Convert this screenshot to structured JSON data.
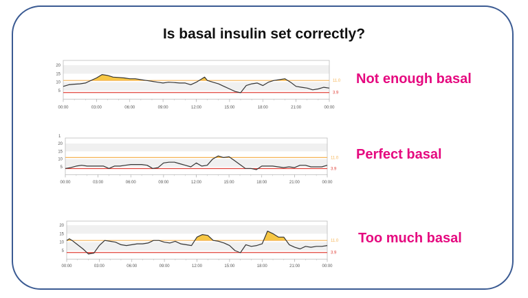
{
  "title": "Is basal insulin set correctly?",
  "colors": {
    "frame": "#3a5a92",
    "label": "#e5097f",
    "high_line": "#f5b456",
    "low_line": "#e0423a",
    "high_fill": "#f7c744",
    "low_fill": "#f08080",
    "trace": "#333333"
  },
  "chart_data": [
    {
      "type": "line",
      "label": "Not enough basal",
      "xticks": [
        "00:00",
        "03:00",
        "06:00",
        "09:00",
        "12:00",
        "15:00",
        "18:00",
        "21:00",
        "00:00"
      ],
      "yticks": [
        5,
        10,
        15,
        20
      ],
      "ylim": [
        0,
        23
      ],
      "thresholds": [
        {
          "value": 11.0,
          "label": "11.0"
        },
        {
          "value": 3.9,
          "label": "3.9"
        }
      ],
      "x": [
        "00:00",
        "00:30",
        "01:00",
        "01:30",
        "02:00",
        "02:30",
        "03:00",
        "03:30",
        "04:00",
        "04:30",
        "05:00",
        "05:30",
        "06:00",
        "06:30",
        "07:00",
        "07:30",
        "08:00",
        "08:30",
        "09:00",
        "09:30",
        "10:00",
        "10:30",
        "11:00",
        "11:30",
        "12:00",
        "12:30",
        "12:45",
        "13:00",
        "13:30",
        "14:00",
        "14:30",
        "15:00",
        "15:30",
        "16:00",
        "16:30",
        "17:00",
        "17:30",
        "18:00",
        "18:30",
        "19:00",
        "19:30",
        "20:00",
        "20:30",
        "21:00",
        "21:30",
        "22:00",
        "22:30",
        "23:00",
        "23:30",
        "24:00"
      ],
      "y": [
        7.5,
        8.5,
        8.8,
        9,
        9.5,
        11,
        12.5,
        14.5,
        14,
        13,
        12.8,
        12.5,
        12,
        12,
        11.5,
        11,
        10.5,
        10,
        9.5,
        10,
        9.8,
        9.5,
        9.5,
        8.5,
        10,
        12,
        13,
        11,
        10,
        9,
        7.5,
        6,
        4.5,
        3.8,
        8,
        9,
        9.5,
        8,
        10,
        11,
        11.5,
        12,
        10,
        7.5,
        7,
        6.5,
        5.5,
        6,
        7,
        6.5
      ]
    },
    {
      "type": "line",
      "label": "Perfect basal",
      "corner_mark": "1",
      "xticks": [
        "00:00",
        "03:00",
        "06:00",
        "09:00",
        "12:00",
        "15:00",
        "18:00",
        "21:00",
        "00:00"
      ],
      "yticks": [
        5,
        10,
        15,
        20
      ],
      "ylim": [
        0,
        23
      ],
      "thresholds": [
        {
          "value": 11.0,
          "label": "11.0"
        },
        {
          "value": 3.9,
          "label": "3.9"
        }
      ],
      "x": [
        "00:00",
        "00:30",
        "01:00",
        "01:30",
        "02:00",
        "02:30",
        "03:00",
        "03:30",
        "04:00",
        "04:30",
        "05:00",
        "05:30",
        "06:00",
        "06:30",
        "07:00",
        "07:30",
        "08:00",
        "08:30",
        "09:00",
        "09:30",
        "10:00",
        "10:30",
        "11:00",
        "11:30",
        "12:00",
        "12:30",
        "13:00",
        "13:30",
        "14:00",
        "14:30",
        "15:00",
        "15:30",
        "16:00",
        "16:30",
        "17:00",
        "17:30",
        "18:00",
        "18:30",
        "19:00",
        "19:30",
        "20:00",
        "20:30",
        "21:00",
        "21:30",
        "22:00",
        "22:30",
        "23:00",
        "23:30",
        "24:00"
      ],
      "y": [
        4,
        4.5,
        5.5,
        6,
        5.5,
        5.5,
        5.5,
        5.5,
        4,
        5.5,
        5.5,
        6,
        6.5,
        6.5,
        6.5,
        6,
        4,
        4.5,
        7.5,
        8,
        8,
        7,
        6,
        5,
        7.5,
        5.5,
        6,
        10,
        12,
        11,
        11.5,
        9,
        6.5,
        4,
        4,
        3.2,
        5.5,
        5.5,
        5.5,
        5,
        4.5,
        5,
        4.5,
        6,
        6,
        5,
        5,
        5,
        6
      ]
    },
    {
      "type": "line",
      "label": "Too much basal",
      "xticks": [
        "00:00",
        "03:00",
        "06:00",
        "09:00",
        "12:00",
        "15:00",
        "18:00",
        "21:00",
        "00:00"
      ],
      "yticks": [
        5,
        10,
        15,
        20
      ],
      "ylim": [
        0,
        23
      ],
      "thresholds": [
        {
          "value": 11.0,
          "label": "11.0"
        },
        {
          "value": 3.9,
          "label": "3.9"
        }
      ],
      "x": [
        "00:00",
        "00:15",
        "00:30",
        "01:00",
        "01:30",
        "02:00",
        "02:30",
        "03:00",
        "03:30",
        "04:00",
        "04:30",
        "05:00",
        "05:30",
        "06:00",
        "06:30",
        "07:00",
        "07:30",
        "08:00",
        "08:30",
        "09:00",
        "09:30",
        "10:00",
        "10:30",
        "11:00",
        "11:30",
        "12:00",
        "12:30",
        "13:00",
        "13:30",
        "14:00",
        "14:30",
        "15:00",
        "15:30",
        "16:00",
        "16:30",
        "17:00",
        "17:30",
        "18:00",
        "18:30",
        "19:00",
        "19:30",
        "20:00",
        "20:30",
        "21:00",
        "21:30",
        "22:00",
        "22:30",
        "23:00",
        "23:30",
        "24:00"
      ],
      "y": [
        11,
        12,
        11,
        8.5,
        6,
        3,
        3.5,
        8,
        11,
        10.5,
        10,
        8.5,
        8,
        8.5,
        9,
        9,
        9.5,
        11,
        11,
        10,
        9.5,
        10.5,
        9,
        8.5,
        8,
        13,
        14.5,
        14,
        11,
        10.5,
        9.5,
        8,
        5,
        3.8,
        8.5,
        7.5,
        8,
        9,
        16.5,
        15,
        13,
        13,
        8.5,
        7,
        6,
        7.5,
        7,
        7.5,
        7.5,
        8
      ]
    }
  ]
}
